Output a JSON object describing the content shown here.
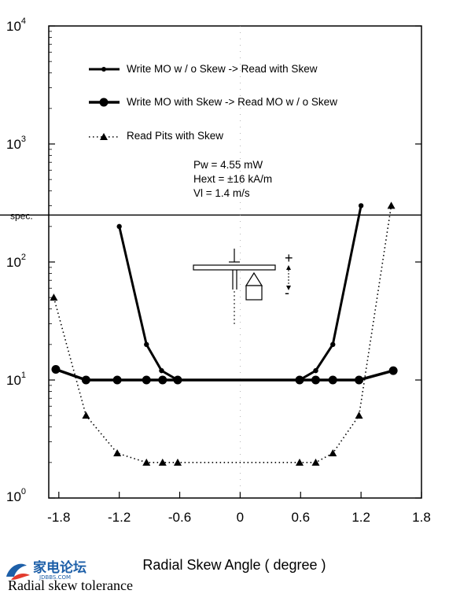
{
  "chart_data": {
    "type": "line",
    "yscale": "log",
    "xlabel": "Radial Skew Angle ( degree )",
    "ylabel": "",
    "xlim": [
      -1.9,
      1.8
    ],
    "ylim": [
      1,
      10000
    ],
    "x_ticks": [
      {
        "value": -1.8,
        "label": "-1.8"
      },
      {
        "value": -1.2,
        "label": "-1.2"
      },
      {
        "value": -0.6,
        "label": "-0.6"
      },
      {
        "value": 0,
        "label": "0"
      },
      {
        "value": 0.6,
        "label": "0.6"
      },
      {
        "value": 1.2,
        "label": "1.2"
      },
      {
        "value": 1.8,
        "label": "1.8"
      }
    ],
    "y_ticks": [
      {
        "value": 1,
        "base": "10",
        "exp": "0"
      },
      {
        "value": 10,
        "base": "10",
        "exp": "1"
      },
      {
        "value": 100,
        "base": "10",
        "exp": "2"
      },
      {
        "value": 1000,
        "base": "10",
        "exp": "3"
      },
      {
        "value": 10000,
        "base": "10",
        "exp": "4"
      }
    ],
    "spec": {
      "label": "spec.",
      "value": 250
    },
    "series": [
      {
        "name": "Write MO w / o Skew -> Read with Skew",
        "style": "thick-solid-small-marker",
        "points": [
          [
            -1.2,
            200
          ],
          [
            -0.93,
            20
          ],
          [
            -0.78,
            12
          ],
          [
            -0.62,
            10
          ],
          [
            0.59,
            10
          ],
          [
            0.75,
            12
          ],
          [
            0.92,
            20
          ],
          [
            1.2,
            300
          ]
        ]
      },
      {
        "name": "Write MO with Skew -> Read MO w / o Skew",
        "style": "thick-solid-large-dot",
        "points": [
          [
            -1.83,
            12.3
          ],
          [
            -1.53,
            10
          ],
          [
            -1.22,
            10
          ],
          [
            -0.93,
            10
          ],
          [
            -0.77,
            10
          ],
          [
            -0.62,
            10
          ],
          [
            0.59,
            10
          ],
          [
            0.75,
            10
          ],
          [
            0.92,
            10
          ],
          [
            1.18,
            10
          ],
          [
            1.52,
            12
          ]
        ]
      },
      {
        "name": "Read Pits with Skew",
        "style": "dotted-triangle",
        "points": [
          [
            -1.85,
            50
          ],
          [
            -1.53,
            5
          ],
          [
            -1.22,
            2.4
          ],
          [
            -0.93,
            2
          ],
          [
            -0.77,
            2
          ],
          [
            -0.62,
            2
          ],
          [
            0.59,
            2
          ],
          [
            0.75,
            2
          ],
          [
            0.92,
            2.4
          ],
          [
            1.18,
            5
          ],
          [
            1.5,
            300
          ]
        ]
      }
    ],
    "annotations": [
      "Pw    = 4.55 mW",
      "Hext = ±16 kA/m",
      "Vl     = 1.4 m/s"
    ],
    "inset_symbols": {
      "plus": "+",
      "minus": "-"
    },
    "grid": false,
    "legend_position": "top-left"
  },
  "caption": "Radial skew tolerance",
  "watermark": {
    "cn": "家电论坛",
    "url": "JDBBS.COM"
  },
  "colors": {
    "ink": "#000000",
    "logo": "#1d5fa8"
  }
}
